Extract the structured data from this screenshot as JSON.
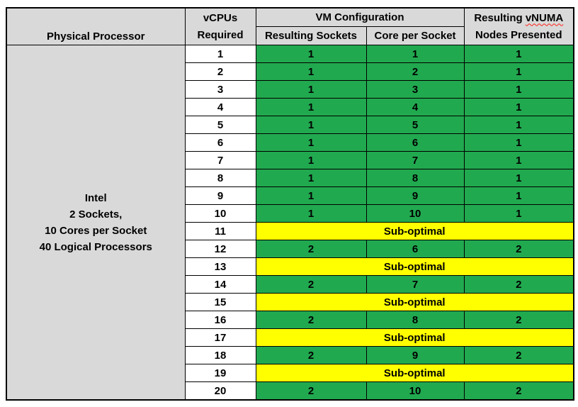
{
  "table": {
    "header": {
      "physical_processor": "Physical Processor",
      "vcpus_required_line1": "vCPUs",
      "vcpus_required_line2": "Required",
      "vm_configuration": "VM Configuration",
      "resulting_sockets": "Resulting Sockets",
      "core_per_socket": "Core per Socket",
      "resulting_vnuma_prefix": "Resulting ",
      "resulting_vnuma_word": "vNUMA",
      "resulting_vnuma_line2": "Nodes Presented"
    },
    "physical_processor": {
      "line1": "Intel",
      "line2": "2 Sockets,",
      "line3": "10 Cores per Socket",
      "line4": "40 Logical Processors"
    },
    "rows": [
      {
        "vcpus": "1",
        "status": "optimal",
        "sockets": "1",
        "cores": "1",
        "vnuma": "1"
      },
      {
        "vcpus": "2",
        "status": "optimal",
        "sockets": "1",
        "cores": "2",
        "vnuma": "1"
      },
      {
        "vcpus": "3",
        "status": "optimal",
        "sockets": "1",
        "cores": "3",
        "vnuma": "1"
      },
      {
        "vcpus": "4",
        "status": "optimal",
        "sockets": "1",
        "cores": "4",
        "vnuma": "1"
      },
      {
        "vcpus": "5",
        "status": "optimal",
        "sockets": "1",
        "cores": "5",
        "vnuma": "1"
      },
      {
        "vcpus": "6",
        "status": "optimal",
        "sockets": "1",
        "cores": "6",
        "vnuma": "1"
      },
      {
        "vcpus": "7",
        "status": "optimal",
        "sockets": "1",
        "cores": "7",
        "vnuma": "1"
      },
      {
        "vcpus": "8",
        "status": "optimal",
        "sockets": "1",
        "cores": "8",
        "vnuma": "1"
      },
      {
        "vcpus": "9",
        "status": "optimal",
        "sockets": "1",
        "cores": "9",
        "vnuma": "1"
      },
      {
        "vcpus": "10",
        "status": "optimal",
        "sockets": "1",
        "cores": "10",
        "vnuma": "1"
      },
      {
        "vcpus": "11",
        "status": "sub-optimal",
        "label": "Sub-optimal"
      },
      {
        "vcpus": "12",
        "status": "optimal",
        "sockets": "2",
        "cores": "6",
        "vnuma": "2"
      },
      {
        "vcpus": "13",
        "status": "sub-optimal",
        "label": "Sub-optimal"
      },
      {
        "vcpus": "14",
        "status": "optimal",
        "sockets": "2",
        "cores": "7",
        "vnuma": "2"
      },
      {
        "vcpus": "15",
        "status": "sub-optimal",
        "label": "Sub-optimal"
      },
      {
        "vcpus": "16",
        "status": "optimal",
        "sockets": "2",
        "cores": "8",
        "vnuma": "2"
      },
      {
        "vcpus": "17",
        "status": "sub-optimal",
        "label": "Sub-optimal"
      },
      {
        "vcpus": "18",
        "status": "optimal",
        "sockets": "2",
        "cores": "9",
        "vnuma": "2"
      },
      {
        "vcpus": "19",
        "status": "sub-optimal",
        "label": "Sub-optimal"
      },
      {
        "vcpus": "20",
        "status": "optimal",
        "sockets": "2",
        "cores": "10",
        "vnuma": "2"
      }
    ],
    "colors": {
      "optimal_green": "#21A94F",
      "suboptimal_yellow": "#FFFF00",
      "header_gray": "#D9D9D9",
      "border_black": "#000000",
      "squiggle_red": "#FF1F14"
    }
  }
}
